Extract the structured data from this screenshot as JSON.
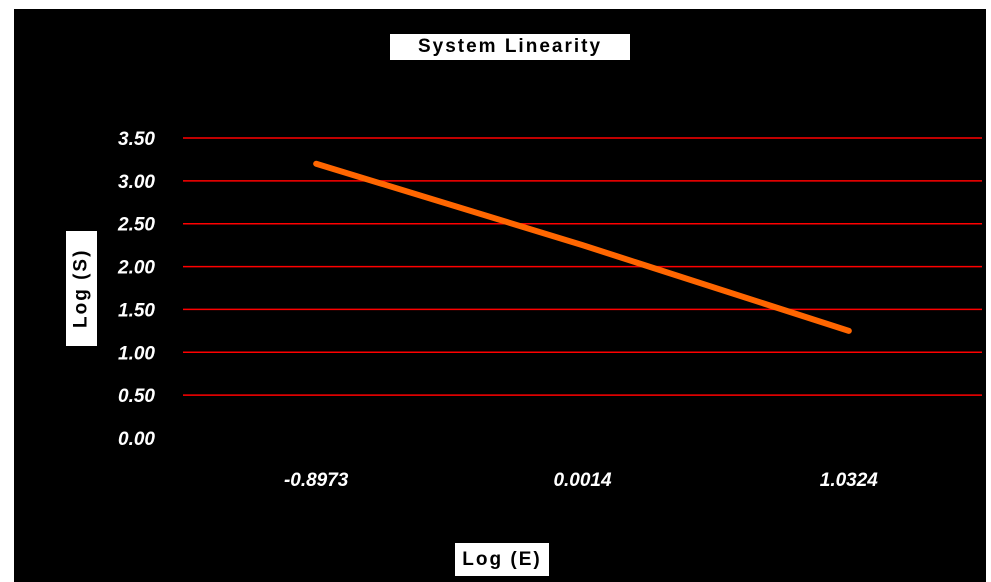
{
  "chart_data": {
    "type": "line",
    "title": "System Linearity",
    "xlabel": "Log (E)",
    "ylabel": "Log (S)",
    "categories": [
      "-0.8973",
      "0.0014",
      "1.0324"
    ],
    "y_ticks": [
      "0.00",
      "0.50",
      "1.00",
      "1.50",
      "2.00",
      "2.50",
      "3.00",
      "3.50"
    ],
    "ylim": [
      0,
      3.5
    ],
    "grid": true,
    "legend": "none",
    "series": [
      {
        "values": [
          3.2,
          2.25,
          1.25
        ],
        "color": "#ff6600"
      }
    ],
    "colors": {
      "background": "#000000",
      "gridline": "#ff0000",
      "text": "#ffffff"
    }
  }
}
